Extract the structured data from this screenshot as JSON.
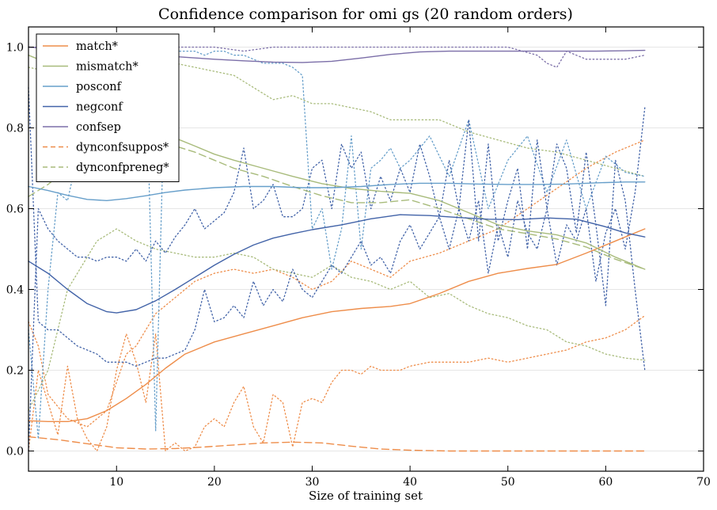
{
  "chart_data": {
    "type": "line",
    "title": "Confidence comparison for omi gs (20 random orders)",
    "xlabel": "Size of training set",
    "ylabel": "",
    "xlim": [
      1,
      70
    ],
    "ylim": [
      -0.05,
      1.05
    ],
    "xticks": [
      10,
      20,
      30,
      40,
      50,
      60,
      70
    ],
    "yticks": [
      0.0,
      0.2,
      0.4,
      0.6,
      0.8,
      1.0
    ],
    "grid": "horizontal",
    "legend_position": "top-left",
    "colors": {
      "match": "#ee8d4a",
      "mismatch": "#a8bb7b",
      "posconf": "#679fca",
      "negconf": "#4263a8",
      "confsep": "#7b6ea8"
    },
    "series": [
      {
        "name": "match*",
        "style": "solid",
        "color": "#ee8d4a",
        "x": [
          1,
          3,
          5,
          7,
          9,
          11,
          13,
          15,
          17,
          20,
          23,
          26,
          29,
          32,
          35,
          38,
          40,
          43,
          46,
          49,
          52,
          55,
          58,
          61,
          64
        ],
        "y": [
          0.075,
          0.073,
          0.073,
          0.08,
          0.1,
          0.13,
          0.165,
          0.205,
          0.24,
          0.27,
          0.29,
          0.31,
          0.33,
          0.345,
          0.353,
          0.358,
          0.365,
          0.39,
          0.42,
          0.44,
          0.452,
          0.462,
          0.49,
          0.52,
          0.55
        ]
      },
      {
        "name": "mismatch*",
        "style": "solid",
        "color": "#a8bb7b",
        "x": [
          1,
          3,
          5,
          8,
          10,
          12,
          14,
          16,
          18,
          20,
          22,
          25,
          28,
          31,
          34,
          37,
          40,
          43,
          46,
          49,
          52,
          55,
          58,
          61,
          64
        ],
        "y": [
          0.98,
          0.96,
          0.93,
          0.88,
          0.84,
          0.81,
          0.79,
          0.775,
          0.755,
          0.735,
          0.72,
          0.7,
          0.68,
          0.662,
          0.65,
          0.643,
          0.638,
          0.62,
          0.59,
          0.56,
          0.545,
          0.535,
          0.515,
          0.48,
          0.45
        ]
      },
      {
        "name": "posconf",
        "style": "solid",
        "color": "#679fca",
        "x": [
          1,
          3,
          5,
          7,
          9,
          11,
          13,
          15,
          17,
          20,
          23,
          26,
          29,
          32,
          35,
          38,
          41,
          44,
          47,
          50,
          53,
          56,
          59,
          62,
          64
        ],
        "y": [
          0.655,
          0.645,
          0.633,
          0.623,
          0.62,
          0.625,
          0.632,
          0.64,
          0.646,
          0.652,
          0.655,
          0.655,
          0.652,
          0.652,
          0.655,
          0.66,
          0.663,
          0.663,
          0.661,
          0.66,
          0.66,
          0.661,
          0.664,
          0.666,
          0.666
        ]
      },
      {
        "name": "negconf",
        "style": "solid",
        "color": "#4263a8",
        "x": [
          1,
          3,
          5,
          7,
          9,
          10,
          12,
          14,
          16,
          18,
          20,
          22,
          24,
          26,
          28,
          30,
          33,
          36,
          39,
          42,
          45,
          48,
          51,
          54,
          57,
          60,
          62,
          64
        ],
        "y": [
          0.47,
          0.44,
          0.4,
          0.365,
          0.345,
          0.342,
          0.35,
          0.372,
          0.4,
          0.43,
          0.46,
          0.487,
          0.51,
          0.527,
          0.538,
          0.548,
          0.56,
          0.575,
          0.585,
          0.583,
          0.578,
          0.574,
          0.573,
          0.577,
          0.574,
          0.555,
          0.54,
          0.53
        ]
      },
      {
        "name": "confsep",
        "style": "solid",
        "color": "#7b6ea8",
        "x": [
          1,
          3,
          5,
          8,
          11,
          14,
          17,
          20,
          23,
          26,
          29,
          32,
          35,
          38,
          41,
          44,
          47,
          50,
          53,
          56,
          59,
          62,
          64
        ],
        "y": [
          1.0,
          0.997,
          0.994,
          0.99,
          0.985,
          0.98,
          0.975,
          0.97,
          0.966,
          0.963,
          0.962,
          0.965,
          0.973,
          0.982,
          0.988,
          0.99,
          0.99,
          0.99,
          0.99,
          0.99,
          0.99,
          0.991,
          0.992
        ]
      },
      {
        "name": "dynconfsuppos*",
        "style": "dashed",
        "color": "#ee8d4a",
        "x": [
          1,
          4,
          7,
          10,
          13,
          16,
          19,
          22,
          25,
          28,
          31,
          34,
          37,
          40,
          44,
          48,
          52,
          56,
          60,
          64
        ],
        "y": [
          0.035,
          0.028,
          0.018,
          0.008,
          0.005,
          0.006,
          0.01,
          0.015,
          0.02,
          0.022,
          0.02,
          0.012,
          0.005,
          0.002,
          0.0,
          0.0,
          0.0,
          0.0,
          0.0,
          0.0
        ]
      },
      {
        "name": "dynconfpreneg*",
        "style": "dashed",
        "color": "#a8bb7b",
        "x": [
          1,
          3,
          5,
          8,
          10,
          12,
          14,
          16,
          18,
          20,
          22,
          25,
          28,
          31,
          34,
          37,
          40,
          43,
          46,
          49,
          52,
          55,
          58,
          61,
          64
        ],
        "y": [
          0.63,
          0.66,
          0.7,
          0.74,
          0.765,
          0.77,
          0.765,
          0.755,
          0.74,
          0.72,
          0.7,
          0.68,
          0.655,
          0.632,
          0.615,
          0.615,
          0.622,
          0.6,
          0.575,
          0.55,
          0.538,
          0.525,
          0.505,
          0.475,
          0.45
        ]
      },
      {
        "style": "dotted",
        "color": "#ee8d4a",
        "x": [
          1,
          2,
          3,
          4,
          5,
          6,
          7,
          8,
          9,
          10,
          11,
          12,
          13,
          14,
          15,
          16,
          17,
          18,
          19,
          20,
          21,
          22,
          23,
          24,
          25,
          26,
          27,
          28,
          29,
          30,
          31,
          32,
          33,
          34,
          35,
          36,
          37,
          38,
          39,
          40,
          42,
          44,
          46,
          48,
          50,
          52,
          54,
          56,
          58,
          60,
          62,
          64
        ],
        "y": [
          0.0,
          0.2,
          0.12,
          0.04,
          0.21,
          0.08,
          0.03,
          0.0,
          0.06,
          0.2,
          0.29,
          0.22,
          0.12,
          0.29,
          0.0,
          0.02,
          0.0,
          0.01,
          0.06,
          0.08,
          0.06,
          0.12,
          0.16,
          0.06,
          0.02,
          0.14,
          0.12,
          0.01,
          0.12,
          0.13,
          0.12,
          0.17,
          0.2,
          0.2,
          0.19,
          0.21,
          0.2,
          0.2,
          0.2,
          0.21,
          0.22,
          0.22,
          0.22,
          0.23,
          0.22,
          0.23,
          0.24,
          0.25,
          0.27,
          0.28,
          0.3,
          0.335
        ]
      },
      {
        "style": "dotted",
        "color": "#ee8d4a",
        "x": [
          1,
          2,
          3,
          5,
          7,
          9,
          11,
          12,
          13,
          14,
          16,
          18,
          20,
          22,
          24,
          26,
          28,
          30,
          32,
          34,
          36,
          38,
          40,
          43,
          46,
          49,
          52,
          55,
          58,
          61,
          64
        ],
        "y": [
          0.32,
          0.26,
          0.14,
          0.08,
          0.06,
          0.1,
          0.24,
          0.26,
          0.3,
          0.34,
          0.38,
          0.42,
          0.44,
          0.45,
          0.44,
          0.45,
          0.43,
          0.4,
          0.42,
          0.47,
          0.45,
          0.43,
          0.47,
          0.49,
          0.52,
          0.55,
          0.6,
          0.65,
          0.7,
          0.74,
          0.77
        ]
      },
      {
        "style": "dotted",
        "color": "#a8bb7b",
        "x": [
          1,
          3,
          5,
          8,
          10,
          12,
          14,
          16,
          18,
          20,
          22,
          24,
          26,
          28,
          30,
          32,
          34,
          36,
          38,
          40,
          43,
          46,
          49,
          52,
          55,
          58,
          61,
          64
        ],
        "y": [
          0.95,
          0.94,
          0.93,
          0.94,
          0.96,
          0.97,
          0.96,
          0.96,
          0.95,
          0.94,
          0.93,
          0.9,
          0.87,
          0.88,
          0.86,
          0.86,
          0.85,
          0.84,
          0.82,
          0.82,
          0.82,
          0.79,
          0.77,
          0.75,
          0.74,
          0.72,
          0.7,
          0.68
        ]
      },
      {
        "style": "dotted",
        "color": "#a8bb7b",
        "x": [
          1,
          3,
          5,
          8,
          10,
          12,
          14,
          16,
          18,
          20,
          22,
          24,
          26,
          28,
          30,
          32,
          34,
          36,
          38,
          40,
          42,
          44,
          46,
          48,
          50,
          52,
          54,
          56,
          58,
          60,
          62,
          64
        ],
        "y": [
          0.1,
          0.2,
          0.4,
          0.52,
          0.55,
          0.52,
          0.5,
          0.49,
          0.48,
          0.48,
          0.49,
          0.48,
          0.45,
          0.44,
          0.43,
          0.46,
          0.43,
          0.42,
          0.4,
          0.42,
          0.38,
          0.39,
          0.36,
          0.34,
          0.33,
          0.31,
          0.3,
          0.27,
          0.26,
          0.24,
          0.23,
          0.225
        ]
      },
      {
        "style": "dotted",
        "color": "#679fca",
        "x": [
          1,
          2,
          3,
          4,
          5,
          6,
          7,
          8,
          9,
          10,
          11,
          12,
          13,
          14,
          15,
          16,
          17,
          18,
          19,
          20,
          21,
          22,
          23,
          24,
          25,
          26,
          27,
          28,
          29,
          30,
          31,
          32,
          33,
          34,
          35,
          36,
          37,
          38,
          39,
          40,
          42,
          44,
          46,
          48,
          50,
          52,
          54,
          56,
          58,
          60,
          62,
          64
        ],
        "y": [
          0.3,
          0.03,
          0.4,
          0.64,
          0.62,
          0.73,
          0.9,
          0.86,
          0.98,
          0.98,
          0.98,
          0.99,
          0.97,
          0.05,
          0.98,
          0.99,
          0.99,
          0.99,
          0.98,
          0.99,
          0.99,
          0.98,
          0.98,
          0.97,
          0.96,
          0.96,
          0.96,
          0.95,
          0.93,
          0.55,
          0.6,
          0.45,
          0.55,
          0.78,
          0.5,
          0.7,
          0.72,
          0.75,
          0.7,
          0.72,
          0.78,
          0.68,
          0.82,
          0.6,
          0.72,
          0.78,
          0.64,
          0.77,
          0.6,
          0.73,
          0.69,
          0.68
        ]
      },
      {
        "style": "dotted",
        "color": "#4263a8",
        "x": [
          1,
          2,
          3,
          4,
          5,
          6,
          7,
          8,
          9,
          10,
          11,
          12,
          13,
          14,
          15,
          16,
          17,
          18,
          19,
          20,
          21,
          22,
          23,
          24,
          25,
          26,
          27,
          28,
          29,
          30,
          31,
          32,
          33,
          34,
          35,
          36,
          37,
          38,
          39,
          40,
          41,
          42,
          43,
          44,
          45,
          46,
          47,
          48,
          49,
          50,
          51,
          52,
          53,
          54,
          55,
          56,
          57,
          58,
          59,
          60,
          61,
          62,
          63,
          64
        ],
        "y": [
          0.0,
          0.6,
          0.55,
          0.52,
          0.5,
          0.48,
          0.48,
          0.47,
          0.48,
          0.48,
          0.47,
          0.5,
          0.47,
          0.52,
          0.49,
          0.53,
          0.56,
          0.6,
          0.55,
          0.57,
          0.59,
          0.64,
          0.75,
          0.6,
          0.62,
          0.66,
          0.58,
          0.58,
          0.6,
          0.7,
          0.72,
          0.6,
          0.76,
          0.7,
          0.74,
          0.6,
          0.68,
          0.62,
          0.7,
          0.64,
          0.76,
          0.68,
          0.58,
          0.72,
          0.6,
          0.82,
          0.52,
          0.76,
          0.52,
          0.62,
          0.7,
          0.5,
          0.77,
          0.6,
          0.76,
          0.7,
          0.54,
          0.74,
          0.56,
          0.36,
          0.72,
          0.62,
          0.4,
          0.2
        ]
      },
      {
        "style": "dotted",
        "color": "#4263a8",
        "x": [
          1,
          2,
          3,
          4,
          5,
          6,
          7,
          8,
          9,
          10,
          11,
          12,
          13,
          14,
          15,
          16,
          17,
          18,
          19,
          20,
          21,
          22,
          23,
          24,
          25,
          26,
          27,
          28,
          29,
          30,
          31,
          32,
          33,
          34,
          35,
          36,
          37,
          38,
          39,
          40,
          41,
          42,
          43,
          44,
          45,
          46,
          47,
          48,
          49,
          50,
          51,
          52,
          53,
          54,
          55,
          56,
          57,
          58,
          59,
          60,
          61,
          62,
          63,
          64
        ],
        "y": [
          0.9,
          0.32,
          0.3,
          0.3,
          0.28,
          0.26,
          0.25,
          0.24,
          0.22,
          0.22,
          0.22,
          0.21,
          0.22,
          0.23,
          0.23,
          0.24,
          0.25,
          0.3,
          0.4,
          0.32,
          0.33,
          0.36,
          0.33,
          0.42,
          0.36,
          0.4,
          0.37,
          0.45,
          0.4,
          0.38,
          0.42,
          0.46,
          0.44,
          0.48,
          0.52,
          0.46,
          0.48,
          0.44,
          0.52,
          0.56,
          0.5,
          0.54,
          0.58,
          0.5,
          0.6,
          0.52,
          0.62,
          0.44,
          0.56,
          0.48,
          0.62,
          0.54,
          0.5,
          0.6,
          0.46,
          0.56,
          0.52,
          0.6,
          0.42,
          0.54,
          0.6,
          0.5,
          0.64,
          0.85
        ]
      },
      {
        "style": "dotted",
        "color": "#7b6ea8",
        "x": [
          1,
          3,
          5,
          8,
          11,
          14,
          17,
          20,
          23,
          26,
          29,
          32,
          35,
          38,
          41,
          44,
          47,
          50,
          53,
          54,
          55,
          56,
          58,
          60,
          62,
          64
        ],
        "y": [
          1.0,
          1.0,
          1.0,
          1.0,
          1.0,
          1.0,
          1.0,
          1.0,
          0.99,
          1.0,
          1.0,
          1.0,
          1.0,
          1.0,
          1.0,
          1.0,
          1.0,
          1.0,
          0.98,
          0.96,
          0.95,
          0.99,
          0.97,
          0.97,
          0.97,
          0.98
        ]
      }
    ]
  }
}
